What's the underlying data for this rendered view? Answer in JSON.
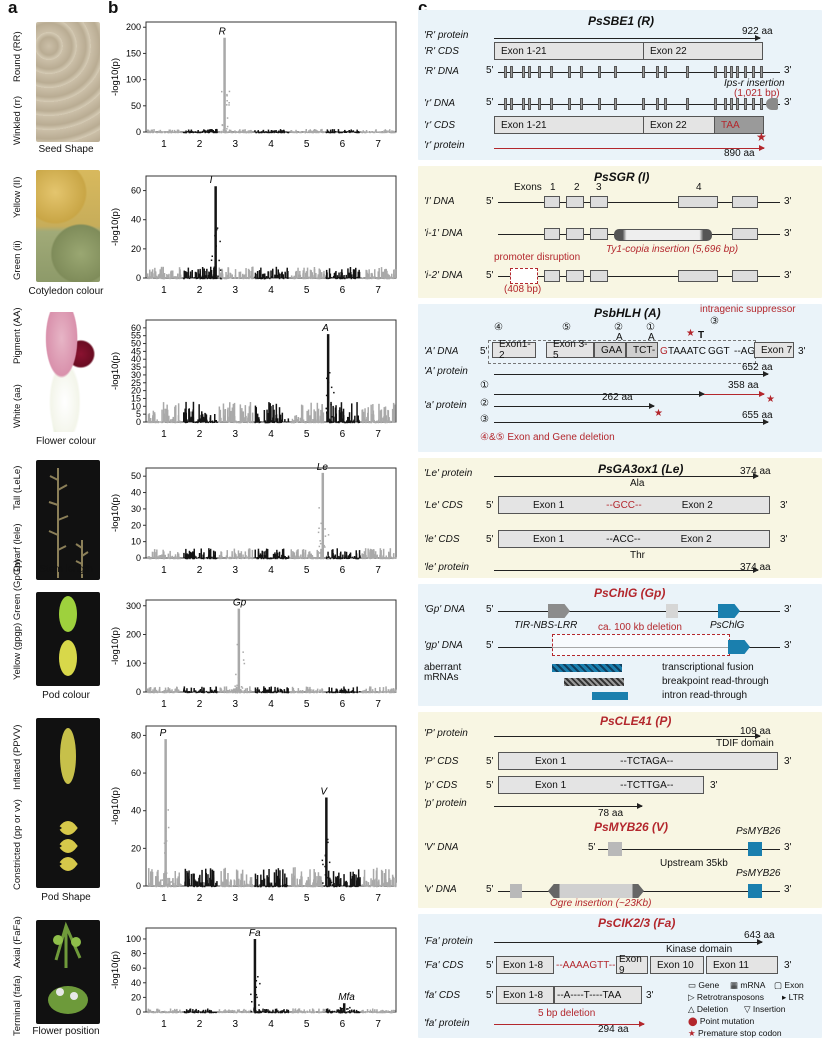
{
  "panels": {
    "a": "a",
    "b": "b",
    "c": "c"
  },
  "traits": [
    {
      "geno_top": "Round (RR)",
      "geno_bottom": "Winkled (rr)",
      "caption": "Seed Shape"
    },
    {
      "geno_top": "Yellow (II)",
      "geno_bottom": "Green (ii)",
      "caption": "Cotyledon colour"
    },
    {
      "geno_top": "Pigment (AA)",
      "geno_bottom": "White (aa)",
      "caption": "Flower colour"
    },
    {
      "geno_top": "Tall (LeLe)",
      "geno_bottom": "Dwarf (lele)",
      "caption": "Stem length"
    },
    {
      "geno_top": "Yellow (gpgp) Green (GpGp)",
      "geno_bottom": "",
      "caption": "Pod colour"
    },
    {
      "geno_top": "Inflated (PPVV)",
      "geno_bottom": "Constricted (pp or vv)",
      "caption": "Pod Shape"
    },
    {
      "geno_top": "Axial (FaFa)",
      "geno_bottom": "Terminal (fafa)",
      "caption": "Flower position"
    }
  ],
  "colors": {
    "odd_chrom": "#a9a9a9",
    "even_chrom": "#141414",
    "accent_red": "#b3272d",
    "blue_bg": "#eaf3f9",
    "yellow_bg": "#f8f6e3",
    "gene_blue": "#1a7fae"
  },
  "ylabel": "-log10(p)",
  "chart_data": [
    {
      "type": "scatter",
      "trait": "Seed Shape",
      "chromosomes": [
        1,
        2,
        3,
        4,
        5,
        6,
        7
      ],
      "ylim": [
        0,
        210
      ],
      "yticks": [
        0,
        50,
        100,
        150,
        200
      ],
      "peaks": [
        {
          "label": "R",
          "chrom": 2.7,
          "value": 180
        }
      ],
      "background_max": 6
    },
    {
      "type": "scatter",
      "trait": "Cotyledon colour",
      "chromosomes": [
        1,
        2,
        3,
        4,
        5,
        6,
        7
      ],
      "ylim": [
        0,
        70
      ],
      "yticks": [
        0,
        20,
        40,
        60
      ],
      "peaks": [
        {
          "label": "I",
          "chrom": 2.45,
          "value": 63
        }
      ],
      "background_max": 8
    },
    {
      "type": "scatter",
      "trait": "Flower colour",
      "chromosomes": [
        1,
        2,
        3,
        4,
        5,
        6,
        7
      ],
      "ylim": [
        0,
        65
      ],
      "yticks": [
        0,
        5,
        10,
        15,
        20,
        25,
        30,
        35,
        40,
        45,
        50,
        55,
        60
      ],
      "peaks": [
        {
          "label": "A",
          "chrom": 5.6,
          "value": 56
        }
      ],
      "background_max": 13
    },
    {
      "type": "scatter",
      "trait": "Stem length",
      "chromosomes": [
        1,
        2,
        3,
        4,
        5,
        6,
        7
      ],
      "ylim": [
        0,
        55
      ],
      "yticks": [
        0,
        10,
        20,
        30,
        40,
        50
      ],
      "peaks": [
        {
          "label": "Le",
          "chrom": 5.45,
          "value": 52
        }
      ],
      "background_max": 6
    },
    {
      "type": "scatter",
      "trait": "Pod colour",
      "chromosomes": [
        1,
        2,
        3,
        4,
        5,
        6,
        7
      ],
      "ylim": [
        0,
        320
      ],
      "yticks": [
        0,
        100,
        200,
        300
      ],
      "peaks": [
        {
          "label": "Gp",
          "chrom": 3.1,
          "value": 290
        }
      ],
      "background_max": 20
    },
    {
      "type": "scatter",
      "trait": "Pod Shape",
      "chromosomes": [
        1,
        2,
        3,
        4,
        5,
        6,
        7
      ],
      "ylim": [
        0,
        85
      ],
      "yticks": [
        0,
        20,
        40,
        60,
        80
      ],
      "peaks": [
        {
          "label": "P",
          "chrom": 1.05,
          "value": 78
        },
        {
          "label": "V",
          "chrom": 5.55,
          "value": 47
        }
      ],
      "background_max": 10
    },
    {
      "type": "scatter",
      "trait": "Flower position",
      "chromosomes": [
        1,
        2,
        3,
        4,
        5,
        6,
        7
      ],
      "ylim": [
        0,
        115
      ],
      "yticks": [
        0,
        20,
        40,
        60,
        80,
        100
      ],
      "peaks": [
        {
          "label": "Fa",
          "chrom": 3.55,
          "value": 100
        },
        {
          "label": "Mfa",
          "chrom": 6.05,
          "value": 12
        }
      ],
      "background_max": 5
    }
  ],
  "diagrams": {
    "sbe1": {
      "title": "PsSBE1 (R)",
      "R_protein": "'R' protein",
      "R_protein_len": "922 aa",
      "R_cds": "'R' CDS",
      "exon_1_21": "Exon 1-21",
      "exon_22": "Exon 22",
      "R_dna": "'R' DNA",
      "r_dna": "'r' DNA",
      "r_cds": "'r' CDS",
      "r_protein": "'r' protein",
      "ips_r": "Ips-r insertion",
      "ips_r_len": "(1,021 bp)",
      "stop": "TAA",
      "r_protein_len": "890 aa",
      "five": "5'",
      "three": "3'"
    },
    "sgr": {
      "title": "PsSGR (I)",
      "I_dna": "'I' DNA",
      "i1_dna": "'i-1' DNA",
      "i2_dna": "'i-2' DNA",
      "exons": "Exons",
      "ex1": "1",
      "ex2": "2",
      "ex3": "3",
      "ex4": "4",
      "ty1": "Ty1-copia insertion (5,696 bp)",
      "promoter": "promoter disruption",
      "promoter_len": "(408 bp)"
    },
    "bhlh": {
      "title": "PsbHLH (A)",
      "suppressor": "intragenic suppressor",
      "A_dna": "'A' DNA",
      "exon1_2": "Exon1-2",
      "exon3_5": "Exon 3-5",
      "gaa": "GAA",
      "tct": "TCT-",
      "g": "G",
      "taaatc": "TAAATC",
      "ggt": "GGT",
      "ag": "--AG",
      "exon7": "Exon 7",
      "c1": "①",
      "c2": "②",
      "c3": "③",
      "c4": "④",
      "c5": "⑤",
      "A_letter": "A",
      "T_letter": "T",
      "A_protein": "'A' protein",
      "A_len": "652 aa",
      "a_protein": "'a' protein",
      "len1": "358 aa",
      "len2": "262 aa",
      "len3": "655 aa",
      "deletion": "④&⑤ Exon  and Gene deletion"
    },
    "ga3ox1": {
      "title": "PsGA3ox1 (Le)",
      "Le_protein": "'Le' protein",
      "Le_len": "374 aa",
      "ala": "Ala",
      "Le_cds": "'Le' CDS",
      "exon1": "Exon 1",
      "gcc": "--GCC--",
      "exon2": "Exon 2",
      "le_cds": "'le' CDS",
      "acc": "--ACC--",
      "thr": "Thr",
      "le_protein": "'le' protein",
      "le_len": "374 aa"
    },
    "chlg": {
      "title": "PsChlG (Gp)",
      "Gp_dna": "'Gp' DNA",
      "gp_dna": "'gp' DNA",
      "tir": "TIR-NBS-LRR",
      "gene": "PsChlG",
      "deletion": "ca. 100 kb deletion",
      "aberrant": "aberrant",
      "mrnas": "mRNAs",
      "fusion": "transcriptional fusion",
      "breakpoint": "breakpoint read-through",
      "intron": "intron read-through"
    },
    "cle41": {
      "title": "PsCLE41 (P)",
      "P_protein": "'P' protein",
      "P_len": "109 aa",
      "tdif": "TDIF domain",
      "P_cds": "'P' CDS",
      "exon1": "Exon 1",
      "tctaga": "--TCTAGA--",
      "p_cds": "'p' CDS",
      "tcttga": "--TCTTGA--",
      "p_protein": "'p' protein",
      "p_len": "78 aa"
    },
    "myb26": {
      "title": "PsMYB26 (V)",
      "V_dna": "'V' DNA",
      "v_dna": "'v' DNA",
      "gene": "PsMYB26",
      "upstream": "Upstream 35kb",
      "ogre": "Ogre insertion (~23Kb)"
    },
    "cik": {
      "title": "PsCIK2/3 (Fa)",
      "Fa_protein": "'Fa' protein",
      "Fa_len": "643 aa",
      "kinase": "Kinase domain",
      "Fa_cds": "'Fa' CDS",
      "exon1_8": "Exon 1-8",
      "aaaagtt": "--AAAAGTT--",
      "exon9": "Exon 9",
      "exon10": "Exon 10",
      "exon11": "Exon 11",
      "fa_cds": "'fa' CDS",
      "fa_seq": "--A----T----TAA",
      "deletion": "5 bp deletion",
      "fa_protein": "'fa' protein",
      "fa_len": "294 aa"
    },
    "legend": {
      "gene": "Gene",
      "mrna": "mRNA",
      "exon": "Exon",
      "retro": "Retrotransposons",
      "ltr": "LTR",
      "del": "Deletion",
      "ins": "Insertion",
      "point": "Point mutation",
      "stop": "Premature stop codon"
    }
  }
}
